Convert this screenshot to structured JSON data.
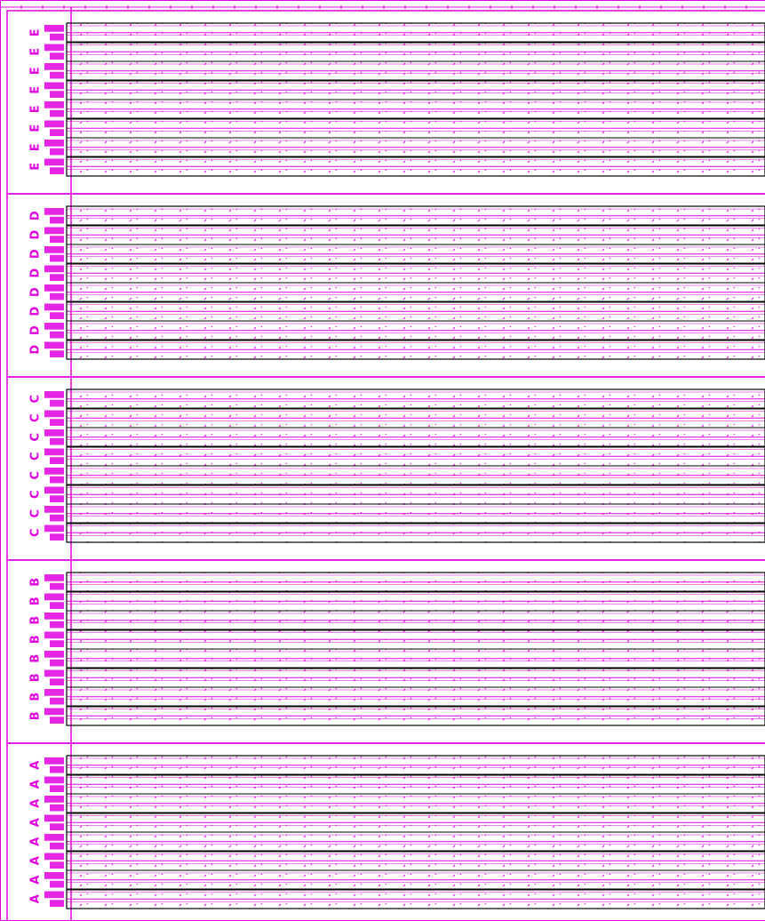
{
  "sections": [
    {
      "label": "E",
      "rows": [
        "E",
        "E",
        "E",
        "E",
        "E",
        "E",
        "E",
        "E"
      ]
    },
    {
      "label": "D",
      "rows": [
        "D",
        "D",
        "D",
        "D",
        "D",
        "D",
        "D",
        "D"
      ]
    },
    {
      "label": "C",
      "rows": [
        "C",
        "C",
        "C",
        "C",
        "C",
        "C",
        "C",
        "C"
      ]
    },
    {
      "label": "B",
      "rows": [
        "B",
        "B",
        "B",
        "B",
        "B",
        "B",
        "B",
        "B"
      ]
    },
    {
      "label": "A",
      "rows": [
        "A",
        "A",
        "A",
        "A",
        "A",
        "A",
        "A",
        "A"
      ]
    }
  ]
}
